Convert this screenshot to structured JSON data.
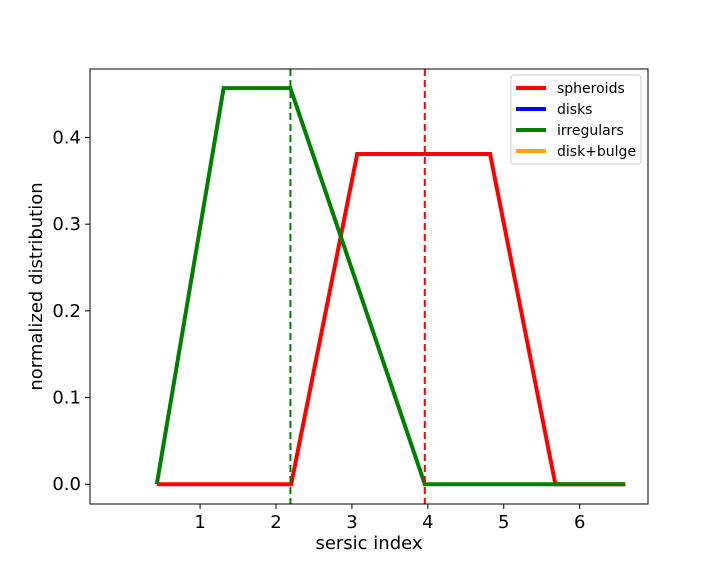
{
  "chart_data": {
    "type": "line",
    "title": "",
    "xlabel": "sersic index",
    "ylabel": "normalized distribution",
    "xlim": [
      -0.45,
      6.9
    ],
    "ylim": [
      -0.0228,
      0.479
    ],
    "xticks": [
      1,
      2,
      3,
      4,
      5,
      6
    ],
    "yticks": [
      0.0,
      0.1,
      0.2,
      0.3,
      0.4
    ],
    "ytick_labels": [
      "0.0",
      "0.1",
      "0.2",
      "0.3",
      "0.4"
    ],
    "grid": false,
    "legend_position": "top-right",
    "series": [
      {
        "name": "spheroids",
        "color": "#ff0000",
        "x": [
          0.43,
          2.2,
          3.07,
          4.82,
          5.68,
          6.6
        ],
        "y": [
          0.0,
          0.0,
          0.381,
          0.381,
          0.0,
          0.0
        ]
      },
      {
        "name": "disks",
        "color": "#0000ff",
        "x": [],
        "y": []
      },
      {
        "name": "irregulars",
        "color": "#008000",
        "x": [
          0.43,
          1.31,
          2.19,
          3.96,
          6.6
        ],
        "y": [
          0.0,
          0.457,
          0.457,
          0.0,
          0.0
        ]
      },
      {
        "name": "disk+bulge",
        "color": "#ffa500",
        "x": [],
        "y": []
      }
    ],
    "vlines": [
      {
        "x": 2.19,
        "color": "#008000",
        "style": "dashed"
      },
      {
        "x": 3.96,
        "color": "#ff0000",
        "style": "dashed"
      }
    ]
  }
}
